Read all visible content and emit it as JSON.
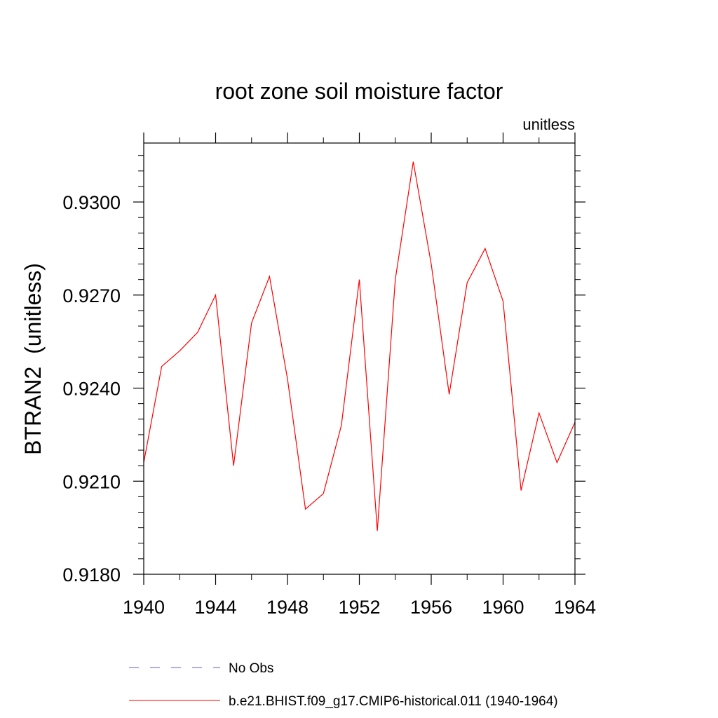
{
  "chart_data": {
    "type": "line",
    "title": "root zone soil moisture factor",
    "units_label": "unitless",
    "ylabel": "BTRAN2  (unitless)",
    "xlabel": "",
    "xlim": [
      1940,
      1964
    ],
    "ylim": [
      0.918,
      0.9319
    ],
    "x_major_ticks": [
      1940,
      1944,
      1948,
      1952,
      1956,
      1960,
      1964
    ],
    "x_minor_ticks": [
      1942,
      1946,
      1950,
      1954,
      1958,
      1962
    ],
    "y_major_ticks": [
      0.918,
      0.921,
      0.924,
      0.927,
      0.93
    ],
    "y_major_tick_labels": [
      "0.9180",
      "0.9210",
      "0.9240",
      "0.9270",
      "0.9300"
    ],
    "y_minor_step": 0.0005,
    "grid": false,
    "legend_position": "bottom",
    "series": [
      {
        "name": "No Obs",
        "color": "#6060c0",
        "style": "dashed",
        "x": [],
        "values": []
      },
      {
        "name": "b.e21.BHIST.f09_g17.CMIP6-historical.011 (1940-1964)",
        "color": "#ff0000",
        "style": "solid",
        "x": [
          1940,
          1941,
          1942,
          1943,
          1944,
          1945,
          1946,
          1947,
          1948,
          1949,
          1950,
          1951,
          1952,
          1953,
          1954,
          1955,
          1956,
          1957,
          1958,
          1959,
          1960,
          1961,
          1962,
          1963,
          1964
        ],
        "values": [
          0.9216,
          0.9247,
          0.9252,
          0.9258,
          0.927,
          0.9215,
          0.9261,
          0.9276,
          0.9243,
          0.9201,
          0.9206,
          0.9228,
          0.9275,
          0.9194,
          0.9275,
          0.9313,
          0.928,
          0.9238,
          0.9274,
          0.9285,
          0.9268,
          0.9207,
          0.9232,
          0.9216,
          0.9229
        ]
      }
    ]
  }
}
